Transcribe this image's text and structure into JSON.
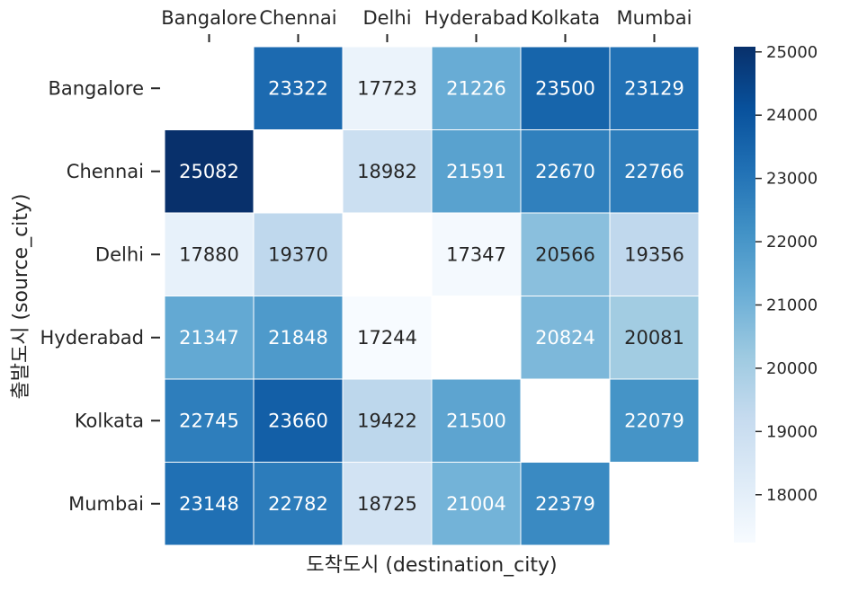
{
  "chart_data": {
    "type": "heatmap",
    "xlabel": "도착도시 (destination_city)",
    "ylabel": "출발도시 (source_city)",
    "x_categories": [
      "Bangalore",
      "Chennai",
      "Delhi",
      "Hyderabad",
      "Kolkata",
      "Mumbai"
    ],
    "y_categories": [
      "Bangalore",
      "Chennai",
      "Delhi",
      "Hyderabad",
      "Kolkata",
      "Mumbai"
    ],
    "values": [
      [
        null,
        23322,
        17723,
        21226,
        23500,
        23129
      ],
      [
        25082,
        null,
        18982,
        21591,
        22670,
        22766
      ],
      [
        17880,
        19370,
        null,
        17347,
        20566,
        19356
      ],
      [
        21347,
        21848,
        17244,
        null,
        20824,
        20081
      ],
      [
        22745,
        23660,
        19422,
        21500,
        null,
        22079
      ],
      [
        23148,
        22782,
        18725,
        21004,
        22379,
        null
      ]
    ],
    "colormap": "Blues",
    "colorbar": {
      "ticks": [
        18000,
        19000,
        20000,
        21000,
        22000,
        23000,
        24000,
        25000
      ],
      "range": [
        17244,
        25082
      ]
    },
    "x_ticks_position": "top"
  }
}
